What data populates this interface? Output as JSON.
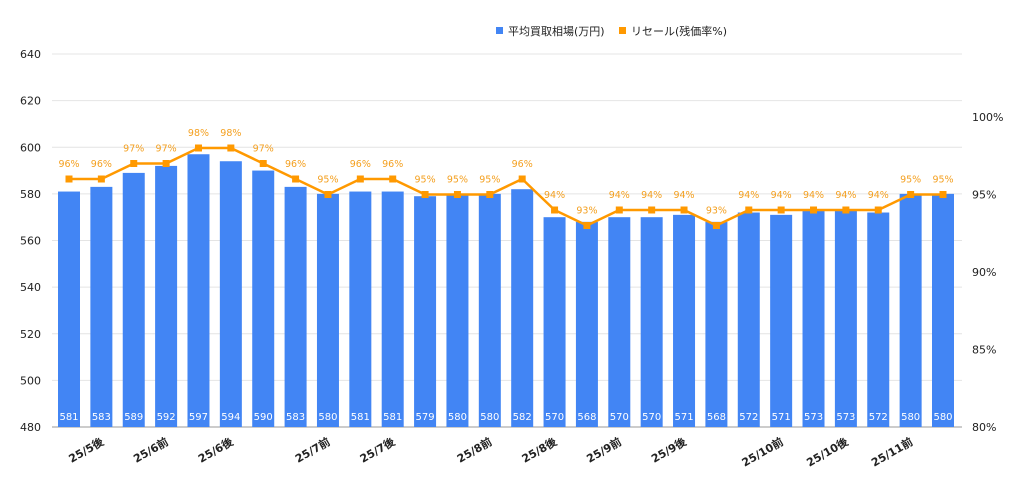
{
  "chart_data": {
    "type": "bar+line",
    "legend": [
      "平均買取相場(万円)",
      "リセール(残価率%)"
    ],
    "legend_position": "top-right",
    "colors": {
      "bars": "#4285f4",
      "line": "#ff9900",
      "line_labels": "#f4a020"
    },
    "x_tick_labels": [
      "",
      "25/5後",
      "",
      "25/6前",
      "",
      "25/6後",
      "",
      "",
      "25/7前",
      "",
      "25/7後",
      "",
      "",
      "25/8前",
      "",
      "25/8後",
      "",
      "25/9前",
      "",
      "25/9後",
      "",
      "",
      "25/10前",
      "",
      "25/10後",
      "",
      "25/11前",
      ""
    ],
    "left_axis": {
      "ylim": [
        480,
        640
      ],
      "ticks": [
        "480",
        "500",
        "520",
        "540",
        "560",
        "580",
        "600",
        "620",
        "640"
      ]
    },
    "right_axis": {
      "ylim": [
        80,
        100
      ],
      "ticks": [
        "80%",
        "85%",
        "90%",
        "95%",
        "100%"
      ]
    },
    "grid": true,
    "series": [
      {
        "name": "平均買取相場(万円)",
        "type": "bar",
        "axis": "left",
        "values": [
          581,
          583,
          589,
          592,
          597,
          594,
          590,
          583,
          580,
          581,
          581,
          579,
          580,
          580,
          582,
          570,
          568,
          570,
          570,
          571,
          568,
          572,
          571,
          573,
          573,
          572,
          580,
          580
        ]
      },
      {
        "name": "リセール(残価率%)",
        "type": "line",
        "axis": "right",
        "values": [
          96,
          96,
          97,
          97,
          98,
          98,
          97,
          96,
          95,
          96,
          96,
          95,
          95,
          95,
          96,
          94,
          93,
          94,
          94,
          94,
          93,
          94,
          94,
          94,
          94,
          94,
          95,
          95
        ]
      }
    ]
  }
}
